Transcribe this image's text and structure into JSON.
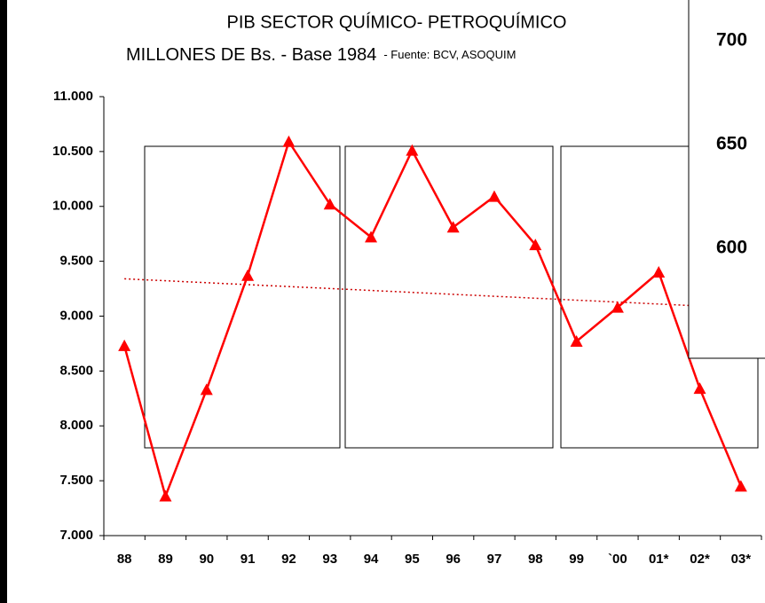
{
  "chart_data": {
    "type": "line",
    "title": "PIB SECTOR QUÍMICO- PETROQUÍMICO",
    "subtitle": "MILLONES DE Bs. -  Base 1984",
    "source": "- Fuente: BCV, ASOQUIM",
    "categories": [
      "88",
      "89",
      "90",
      "91",
      "92",
      "93",
      "94",
      "95",
      "96",
      "97",
      "98",
      "99",
      "`00",
      "01*",
      "02*",
      "03*"
    ],
    "series": [
      {
        "color": "#ff0000",
        "values": [
          8730,
          7360,
          8330,
          9370,
          10590,
          10020,
          9720,
          10510,
          9810,
          10090,
          9650,
          8770,
          9080,
          9400,
          8340,
          7450
        ]
      }
    ],
    "trend": {
      "color": "#cc0000",
      "values": [
        9340,
        9075
      ]
    },
    "ylim": [
      7000,
      11000
    ],
    "yticks": [
      {
        "value": 7000,
        "label": "7.000"
      },
      {
        "value": 7500,
        "label": "7.500"
      },
      {
        "value": 8000,
        "label": "8.000"
      },
      {
        "value": 8500,
        "label": "8.500"
      },
      {
        "value": 9000,
        "label": "9.000"
      },
      {
        "value": 9500,
        "label": "9.500"
      },
      {
        "value": 10000,
        "label": "10.000"
      },
      {
        "value": 10500,
        "label": "10.500"
      },
      {
        "value": 11000,
        "label": "11.000"
      }
    ],
    "overlay_labels": [
      "700",
      "650",
      "600"
    ]
  }
}
